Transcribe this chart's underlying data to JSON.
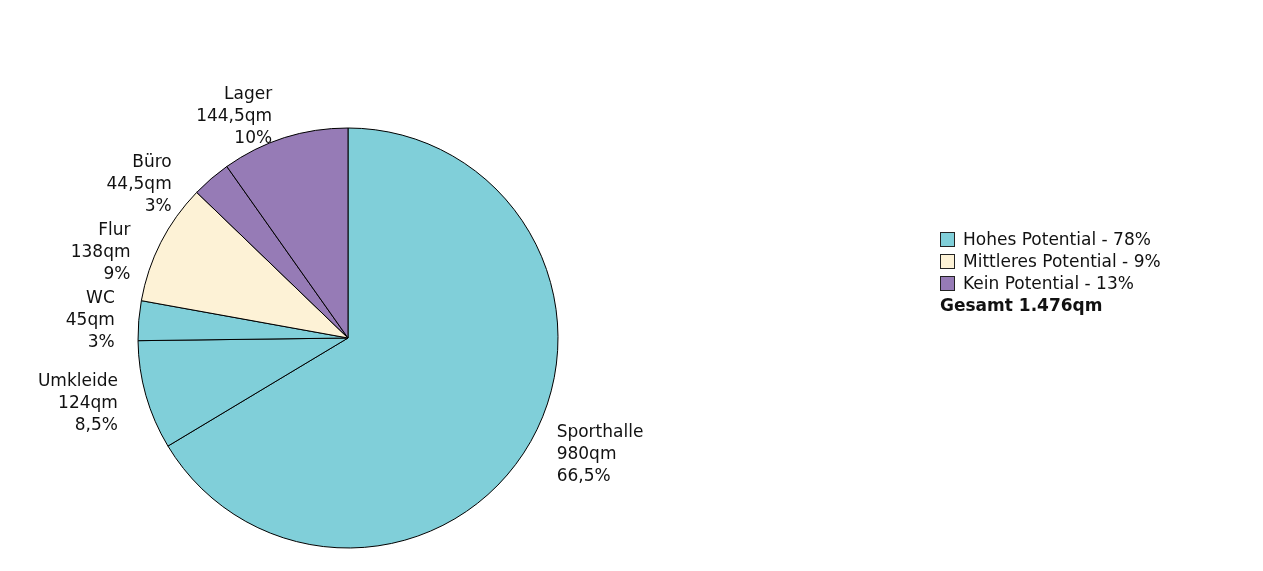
{
  "chart_data": {
    "type": "pie",
    "categories": [
      "Sporthalle",
      "Umkleide",
      "WC",
      "Flur",
      "Büro",
      "Lager"
    ],
    "values": [
      980,
      124,
      45,
      138,
      44.5,
      144.5
    ],
    "value_labels": [
      "980qm\n66,5%",
      "124qm\n8,5%",
      "45qm\n3%",
      "138qm\n9%",
      "44,5qm\n3%",
      "144,5qm\n10%"
    ],
    "colors": [
      "#80cfd9",
      "#80cfd9",
      "#80cfd9",
      "#fdf2d6",
      "#967bb6",
      "#967bb6"
    ],
    "annotations": [
      "Hohes Potential - 78%",
      "Mittleres Potential - 9%",
      "Kein Potential - 13%",
      "Gesamt 1.476qm"
    ],
    "legend": false
  }
}
